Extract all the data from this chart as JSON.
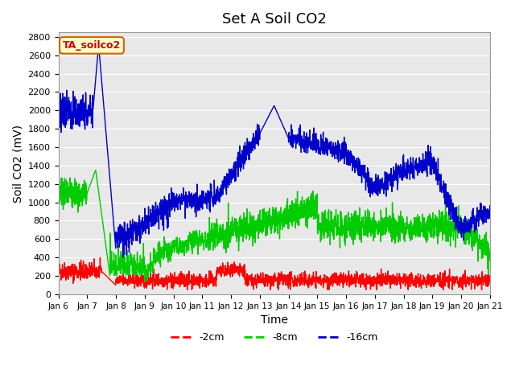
{
  "title": "Set A Soil CO2",
  "xlabel": "Time",
  "ylabel": "Soil CO2 (mV)",
  "annotation_text": "TA_soilco2",
  "annotation_bg": "#FFFFCC",
  "annotation_text_color": "#CC0000",
  "annotation_border_color": "#CC6600",
  "line_colors": {
    "red": "#FF0000",
    "green": "#00CC00",
    "blue": "#0000CC"
  },
  "legend_labels": [
    "-2cm",
    "-8cm",
    "-16cm"
  ],
  "ylim": [
    0,
    2850
  ],
  "yticks": [
    0,
    200,
    400,
    600,
    800,
    1000,
    1200,
    1400,
    1600,
    1800,
    2000,
    2200,
    2400,
    2600,
    2800
  ],
  "xtick_labels": [
    "Jan 6",
    "Jan 7",
    "Jan 8",
    "Jan 9",
    "Jan 10",
    "Jan 11",
    "Jan 12",
    "Jan 13",
    "Jan 14",
    "Jan 15",
    "Jan 16",
    "Jan 17",
    "Jan 18",
    "Jan 19",
    "Jan 20",
    "Jan 21"
  ],
  "background_color": "#E8E8E8",
  "figure_bg": "#FFFFFF",
  "linewidth": 1.0
}
